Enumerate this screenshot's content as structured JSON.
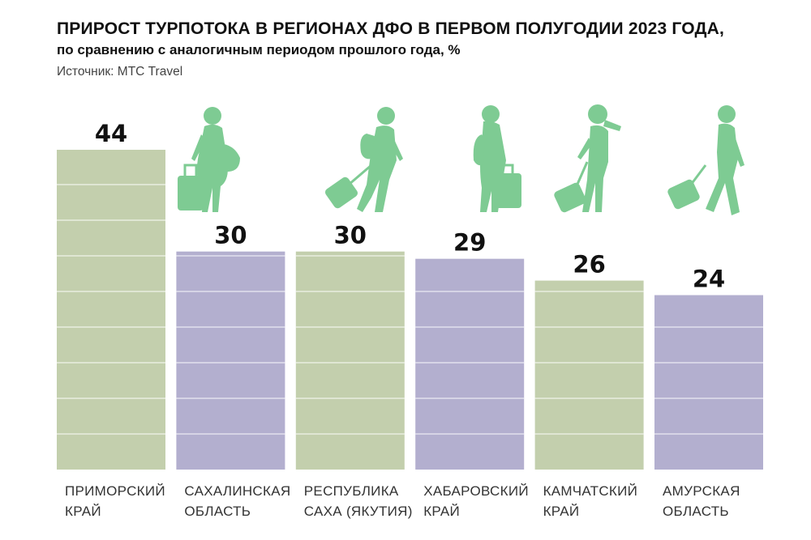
{
  "header": {
    "title": "ПРИРОСТ ТУРПОТОКА В РЕГИОНАХ ДФО В ПЕРВОМ ПОЛУГОДИИ 2023 ГОДА,",
    "subtitle": "по сравнению с аналогичным периодом прошлого года, %",
    "source": "Источник: МТС Travel"
  },
  "colors": {
    "green": "#c3cfad",
    "purple": "#b3afcf",
    "silhouette": "#7ecb93",
    "gridline": "#ffffff"
  },
  "chart_data": {
    "type": "bar",
    "title": "ПРИРОСТ ТУРПОТОКА В РЕГИОНАХ ДФО В ПЕРВОМ ПОЛУГОДИИ 2023 ГОДА,",
    "subtitle": "по сравнению с аналогичным периодом прошлого года, %",
    "categories": [
      [
        "ПРИМОРСКИЙ",
        "КРАЙ"
      ],
      [
        "САХАЛИНСКАЯ",
        "ОБЛАСТЬ"
      ],
      [
        "РЕСПУБЛИКА",
        "САХА (ЯКУТИЯ)"
      ],
      [
        "ХАБАРОВСКИЙ",
        "КРАЙ"
      ],
      [
        "КАМЧАТСКИЙ",
        "КРАЙ"
      ],
      [
        "АМУРСКАЯ",
        "ОБЛАСТЬ"
      ]
    ],
    "values": [
      44,
      30,
      30,
      29,
      26,
      24
    ],
    "value_labels": [
      "44",
      "30",
      "30",
      "29",
      "26",
      "24"
    ],
    "bar_colors": [
      "green",
      "purple",
      "green",
      "purple",
      "green",
      "purple"
    ],
    "ylim": [
      0,
      44
    ],
    "grid": true,
    "xlabel": "",
    "ylabel": "",
    "silhouettes": [
      "traveler-woman-suitcase-icon",
      "traveler-man-running-icon",
      "traveler-woman-backpack-icon",
      "traveler-woman-phone-icon",
      "traveler-man-walking-icon"
    ]
  }
}
